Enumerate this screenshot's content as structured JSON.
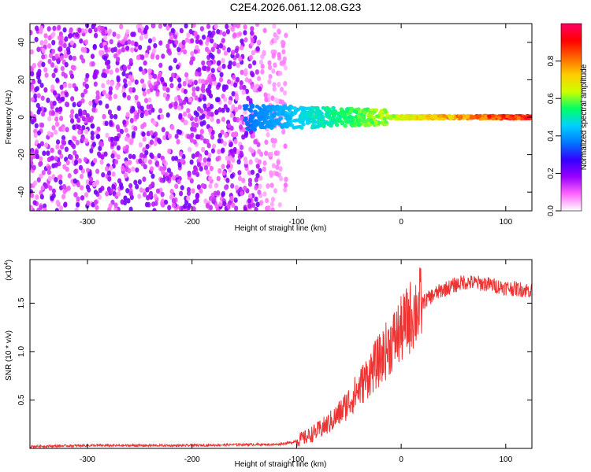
{
  "title": "C2E4.2026.061.12.08.G23",
  "chart_data": [
    {
      "type": "heatmap",
      "xlabel": "Height of straight line (km)",
      "ylabel": "Frequency (Hz)",
      "xlim": [
        -355,
        125
      ],
      "ylim": [
        -50,
        50
      ],
      "xticks": [
        -300,
        -200,
        -100,
        0,
        100
      ],
      "yticks": [
        -40,
        -20,
        0,
        20,
        40
      ],
      "colorbar": {
        "label": "Normalized spectral amplitude",
        "range": [
          0,
          1
        ],
        "ticks": [
          "0.0",
          "0.2",
          "0.4",
          "0.6",
          "0.8"
        ],
        "tick_values": [
          0.0,
          0.2,
          0.4,
          0.6,
          0.8
        ],
        "colors": [
          "#ffffff",
          "#ff66ff",
          "#9900ff",
          "#3300ff",
          "#0077ff",
          "#00d0ff",
          "#00ff66",
          "#ccff00",
          "#ffcc00",
          "#ff6600",
          "#ff0000",
          "#ff0066"
        ]
      },
      "description_regions": [
        {
          "name": "noise",
          "x_range": [
            -355,
            -110
          ],
          "freq_range": [
            -50,
            50
          ],
          "level": 0.2
        },
        {
          "name": "signal",
          "x_range": [
            -150,
            125
          ],
          "freq_center": 0,
          "level_start": 0.35,
          "level_end": 1.0
        }
      ]
    },
    {
      "type": "line",
      "xlabel": "Height of straight line (km)",
      "ylabel": "SNR (10 * v/v)",
      "y_scale_label": "(x10",
      "y_scale_exp": "4",
      "xlim": [
        -355,
        125
      ],
      "ylim": [
        0,
        1.95
      ],
      "xticks": [
        -300,
        -200,
        -100,
        0,
        100
      ],
      "yticks": [
        0.5,
        1.0,
        1.5
      ],
      "ytick_labels": [
        "0.5",
        "1.0",
        "1.5"
      ],
      "color": "#ee3333",
      "series": [
        {
          "name": "SNR",
          "x": [
            -355,
            -300,
            -250,
            -200,
            -150,
            -120,
            -105,
            -100,
            -90,
            -80,
            -70,
            -60,
            -50,
            -40,
            -30,
            -20,
            -10,
            0,
            10,
            20,
            30,
            40,
            60,
            80,
            100,
            125
          ],
          "values": [
            0.02,
            0.03,
            0.03,
            0.03,
            0.04,
            0.04,
            0.06,
            0.08,
            0.12,
            0.18,
            0.25,
            0.35,
            0.48,
            0.62,
            0.78,
            0.92,
            1.08,
            1.22,
            1.38,
            1.5,
            1.58,
            1.64,
            1.72,
            1.7,
            1.66,
            1.63
          ]
        }
      ]
    }
  ]
}
